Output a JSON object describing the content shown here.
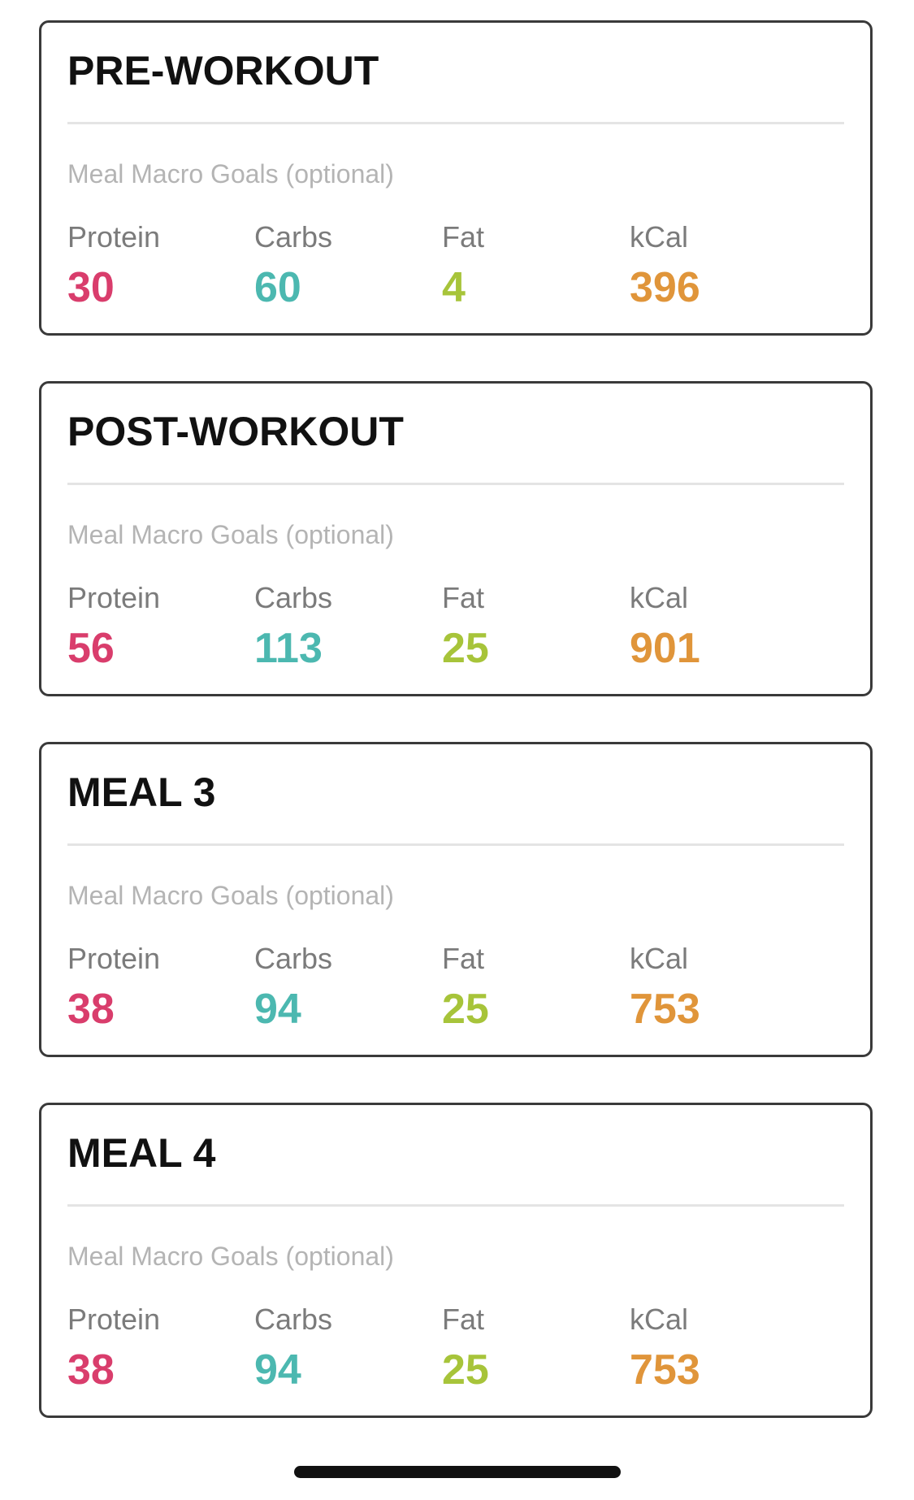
{
  "macro_labels": {
    "protein": "Protein",
    "carbs": "Carbs",
    "fat": "Fat",
    "kcal": "kCal"
  },
  "colors": {
    "protein": "#d93d6c",
    "carbs": "#4cb8b0",
    "fat": "#a7c43a",
    "kcal": "#e0953a"
  },
  "meals": [
    {
      "title": "PRE-WORKOUT",
      "subtitle": "Meal Macro Goals (optional)",
      "protein": "30",
      "carbs": "60",
      "fat": "4",
      "kcal": "396"
    },
    {
      "title": "POST-WORKOUT",
      "subtitle": "Meal Macro Goals (optional)",
      "protein": "56",
      "carbs": "113",
      "fat": "25",
      "kcal": "901"
    },
    {
      "title": "MEAL 3",
      "subtitle": "Meal Macro Goals (optional)",
      "protein": "38",
      "carbs": "94",
      "fat": "25",
      "kcal": "753"
    },
    {
      "title": "MEAL 4",
      "subtitle": "Meal Macro Goals (optional)",
      "protein": "38",
      "carbs": "94",
      "fat": "25",
      "kcal": "753"
    }
  ]
}
